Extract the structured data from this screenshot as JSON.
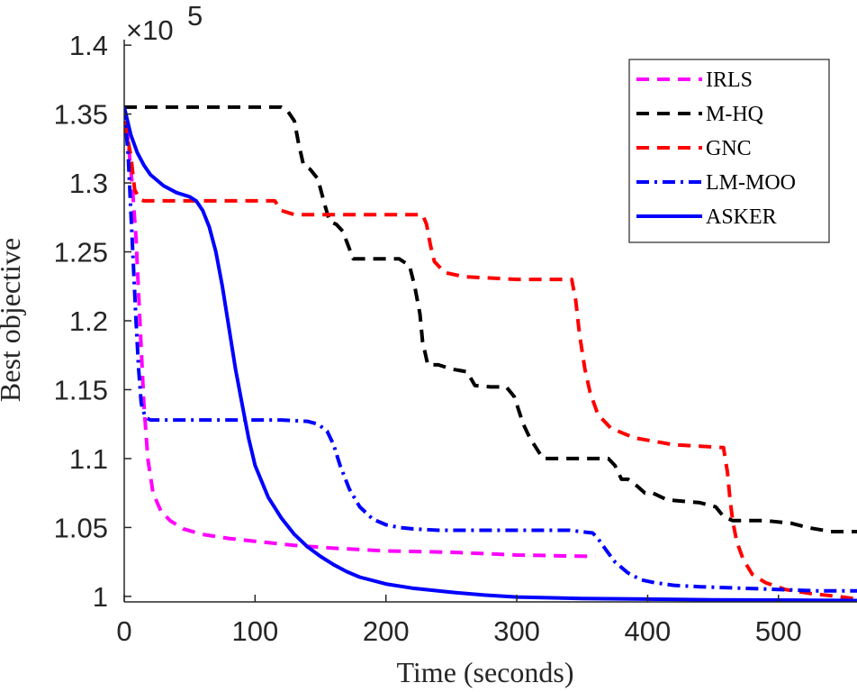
{
  "chart_data": {
    "type": "line",
    "xlabel": "Time (seconds)",
    "ylabel": "Best objective",
    "y_multiplier": {
      "base": "×10",
      "exponent": "5"
    },
    "xlim": [
      0,
      560
    ],
    "ylim": [
      0.996,
      1.404
    ],
    "x_ticks": [
      0,
      100,
      200,
      300,
      400,
      500
    ],
    "x_tick_labels": [
      "0",
      "100",
      "200",
      "300",
      "400",
      "500"
    ],
    "y_ticks": [
      1.0,
      1.05,
      1.1,
      1.15,
      1.2,
      1.25,
      1.3,
      1.35,
      1.4
    ],
    "y_tick_labels": [
      "1",
      "1.05",
      "1.1",
      "1.15",
      "1.2",
      "1.25",
      "1.3",
      "1.35",
      "1.4"
    ],
    "legend_position": "top-right",
    "series": [
      {
        "name": "IRLS",
        "color": "#ff00ff",
        "dash": "dashed",
        "x": [
          0,
          3,
          6,
          9,
          12,
          15,
          18,
          22,
          28,
          35,
          45,
          60,
          80,
          100,
          130,
          160,
          200,
          250,
          300,
          360
        ],
        "y": [
          1.355,
          1.33,
          1.3,
          1.26,
          1.2,
          1.14,
          1.1,
          1.075,
          1.062,
          1.055,
          1.049,
          1.045,
          1.042,
          1.04,
          1.037,
          1.035,
          1.033,
          1.032,
          1.03,
          1.029
        ]
      },
      {
        "name": "M-HQ",
        "color": "#000000",
        "dash": "dashed",
        "x": [
          0,
          120,
          125,
          130,
          133,
          137,
          142,
          148,
          153,
          157,
          162,
          167,
          175,
          190,
          210,
          218,
          222,
          226,
          228,
          232,
          240,
          250,
          262,
          268,
          280,
          292,
          298,
          305,
          310,
          320,
          345,
          370,
          375,
          380,
          385,
          392,
          398,
          404,
          415,
          440,
          452,
          458,
          465,
          490,
          510,
          522,
          540,
          560
        ],
        "y": [
          1.355,
          1.355,
          1.352,
          1.345,
          1.33,
          1.313,
          1.31,
          1.303,
          1.285,
          1.272,
          1.27,
          1.265,
          1.245,
          1.245,
          1.245,
          1.24,
          1.225,
          1.205,
          1.185,
          1.168,
          1.168,
          1.165,
          1.163,
          1.153,
          1.152,
          1.152,
          1.145,
          1.125,
          1.115,
          1.1,
          1.1,
          1.1,
          1.095,
          1.085,
          1.085,
          1.08,
          1.075,
          1.075,
          1.07,
          1.068,
          1.065,
          1.058,
          1.055,
          1.055,
          1.053,
          1.05,
          1.047,
          1.047
        ]
      },
      {
        "name": "GNC",
        "color": "#ff0000",
        "dash": "dashed",
        "x": [
          0,
          3,
          5,
          8,
          12,
          15,
          25,
          60,
          115,
          120,
          130,
          170,
          228,
          231,
          234,
          237,
          245,
          260,
          300,
          342,
          345,
          348,
          352,
          356,
          362,
          372,
          390,
          420,
          458,
          461,
          463,
          465,
          468,
          473,
          480,
          490,
          505,
          525,
          545,
          560
        ],
        "y": [
          1.345,
          1.33,
          1.32,
          1.295,
          1.288,
          1.287,
          1.287,
          1.287,
          1.287,
          1.28,
          1.277,
          1.277,
          1.277,
          1.27,
          1.255,
          1.243,
          1.235,
          1.232,
          1.23,
          1.23,
          1.215,
          1.19,
          1.165,
          1.148,
          1.132,
          1.122,
          1.115,
          1.11,
          1.108,
          1.09,
          1.07,
          1.055,
          1.04,
          1.027,
          1.016,
          1.01,
          1.005,
          1.002,
          1.0,
          0.998
        ]
      },
      {
        "name": "LM-MOO",
        "color": "#0000ff",
        "dash": "dashdot",
        "x": [
          0,
          3,
          5,
          7,
          9,
          11,
          13,
          16,
          20,
          40,
          80,
          120,
          140,
          148,
          155,
          160,
          165,
          172,
          180,
          190,
          200,
          210,
          220,
          240,
          280,
          320,
          340,
          358,
          362,
          368,
          375,
          385,
          395,
          405,
          420,
          440,
          470,
          500,
          530,
          560
        ],
        "y": [
          1.355,
          1.32,
          1.28,
          1.24,
          1.2,
          1.165,
          1.14,
          1.13,
          1.128,
          1.128,
          1.128,
          1.128,
          1.127,
          1.125,
          1.12,
          1.11,
          1.095,
          1.078,
          1.065,
          1.056,
          1.052,
          1.05,
          1.049,
          1.048,
          1.048,
          1.048,
          1.048,
          1.046,
          1.042,
          1.034,
          1.025,
          1.017,
          1.012,
          1.01,
          1.008,
          1.007,
          1.006,
          1.005,
          1.004,
          1.004
        ]
      },
      {
        "name": "ASKER",
        "color": "#0000ff",
        "dash": "solid",
        "x": [
          0,
          5,
          10,
          15,
          20,
          30,
          40,
          50,
          55,
          60,
          65,
          70,
          75,
          80,
          85,
          90,
          95,
          100,
          110,
          120,
          130,
          140,
          150,
          160,
          170,
          180,
          200,
          220,
          250,
          275,
          300,
          350,
          400,
          450,
          500,
          560
        ],
        "y": [
          1.355,
          1.335,
          1.322,
          1.313,
          1.306,
          1.298,
          1.293,
          1.29,
          1.287,
          1.28,
          1.268,
          1.25,
          1.225,
          1.195,
          1.165,
          1.14,
          1.115,
          1.095,
          1.072,
          1.057,
          1.045,
          1.036,
          1.029,
          1.023,
          1.018,
          1.014,
          1.009,
          1.006,
          1.003,
          1.001,
          0.9995,
          0.9985,
          0.998,
          0.9975,
          0.9973,
          0.997
        ]
      }
    ]
  }
}
